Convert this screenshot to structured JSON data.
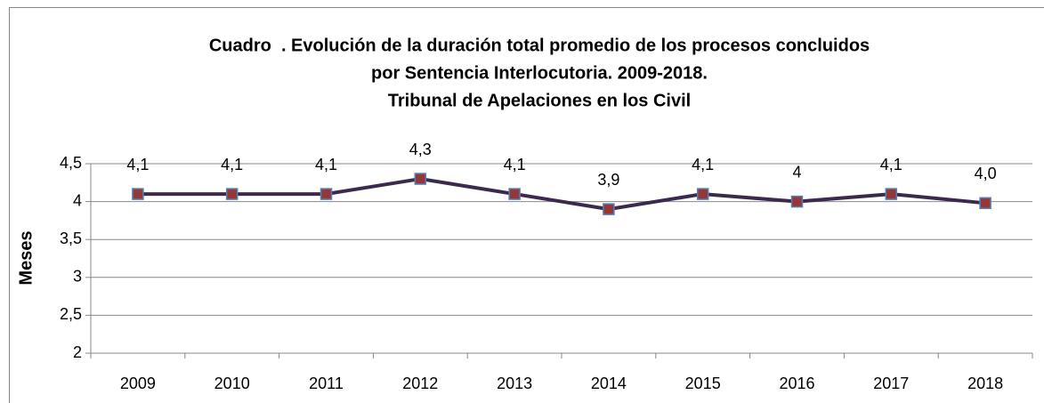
{
  "chart_data": {
    "type": "line",
    "title": [
      "Cuadro  . Evolución de la duración total promedio de los procesos concluidos",
      "por Sentencia Interlocutoria. 2009-2018.",
      "Tribunal de Apelaciones en los Civil"
    ],
    "y_label": "Meses",
    "categories": [
      "2009",
      "2010",
      "2011",
      "2012",
      "2013",
      "2014",
      "2015",
      "2016",
      "2017",
      "2018"
    ],
    "series": [
      {
        "name": "Meses",
        "color": "#3b2a4e",
        "marker_color": "#953735",
        "values": [
          4.1,
          4.1,
          4.1,
          4.3,
          4.1,
          3.9,
          4.1,
          4,
          4.1,
          3.98
        ],
        "value_labels": [
          "4,1",
          "4,1",
          "4,1",
          "4,3",
          "4,1",
          "3,9",
          "4,1",
          "4",
          "4,1",
          "4,0"
        ]
      }
    ],
    "ylim": [
      2,
      4.5
    ],
    "yticks": [
      2,
      {
        "value": 2.5,
        "label": "2,5"
      },
      3,
      {
        "value": 3.5,
        "label": "3,5"
      },
      4,
      {
        "value": 4.5,
        "label": "4,5"
      }
    ],
    "grid": true,
    "legend": false
  }
}
